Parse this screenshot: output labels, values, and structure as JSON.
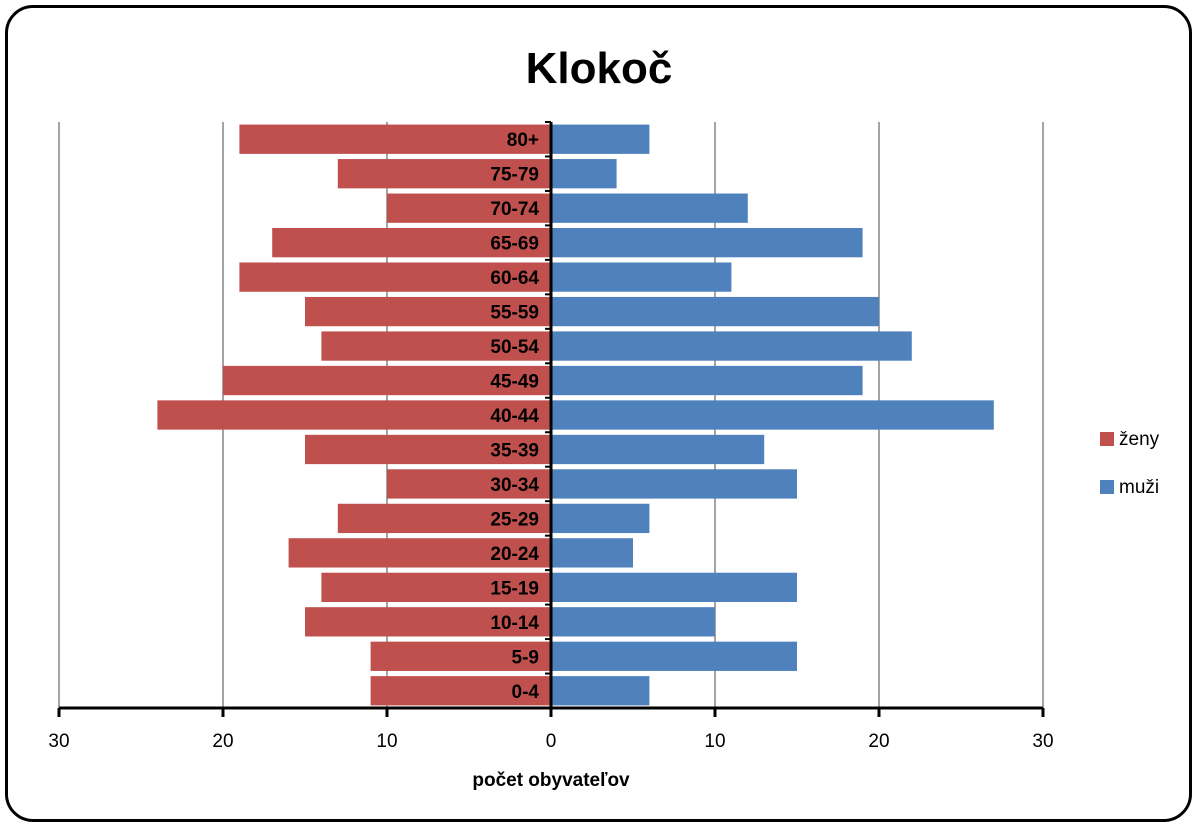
{
  "chart_data": {
    "type": "bar",
    "orientation": "horizontal",
    "title": "Klokoč",
    "xlabel": "počet obyvateľov",
    "ylabel": "",
    "xlim": [
      -30,
      30
    ],
    "x_ticks": [
      -30,
      -20,
      -10,
      0,
      10,
      20,
      30
    ],
    "x_tick_labels": [
      "30",
      "20",
      "10",
      "0",
      "10",
      "20",
      "30"
    ],
    "grid": "vertical",
    "legend_position": "right",
    "categories": [
      "80+",
      "75-79",
      "70-74",
      "65-69",
      "60-64",
      "55-59",
      "50-54",
      "45-49",
      "40-44",
      "35-39",
      "30-34",
      "25-29",
      "20-24",
      "15-19",
      "10-14",
      "5-9",
      "0-4"
    ],
    "series": [
      {
        "name": "ženy",
        "color": "#c0504d",
        "values": [
          19,
          13,
          10,
          17,
          19,
          15,
          14,
          20,
          24,
          15,
          10,
          13,
          16,
          14,
          15,
          11,
          11
        ]
      },
      {
        "name": "muži",
        "color": "#4f81bd",
        "values": [
          6,
          4,
          12,
          19,
          11,
          20,
          22,
          19,
          27,
          13,
          15,
          6,
          5,
          15,
          10,
          15,
          6
        ]
      }
    ]
  }
}
